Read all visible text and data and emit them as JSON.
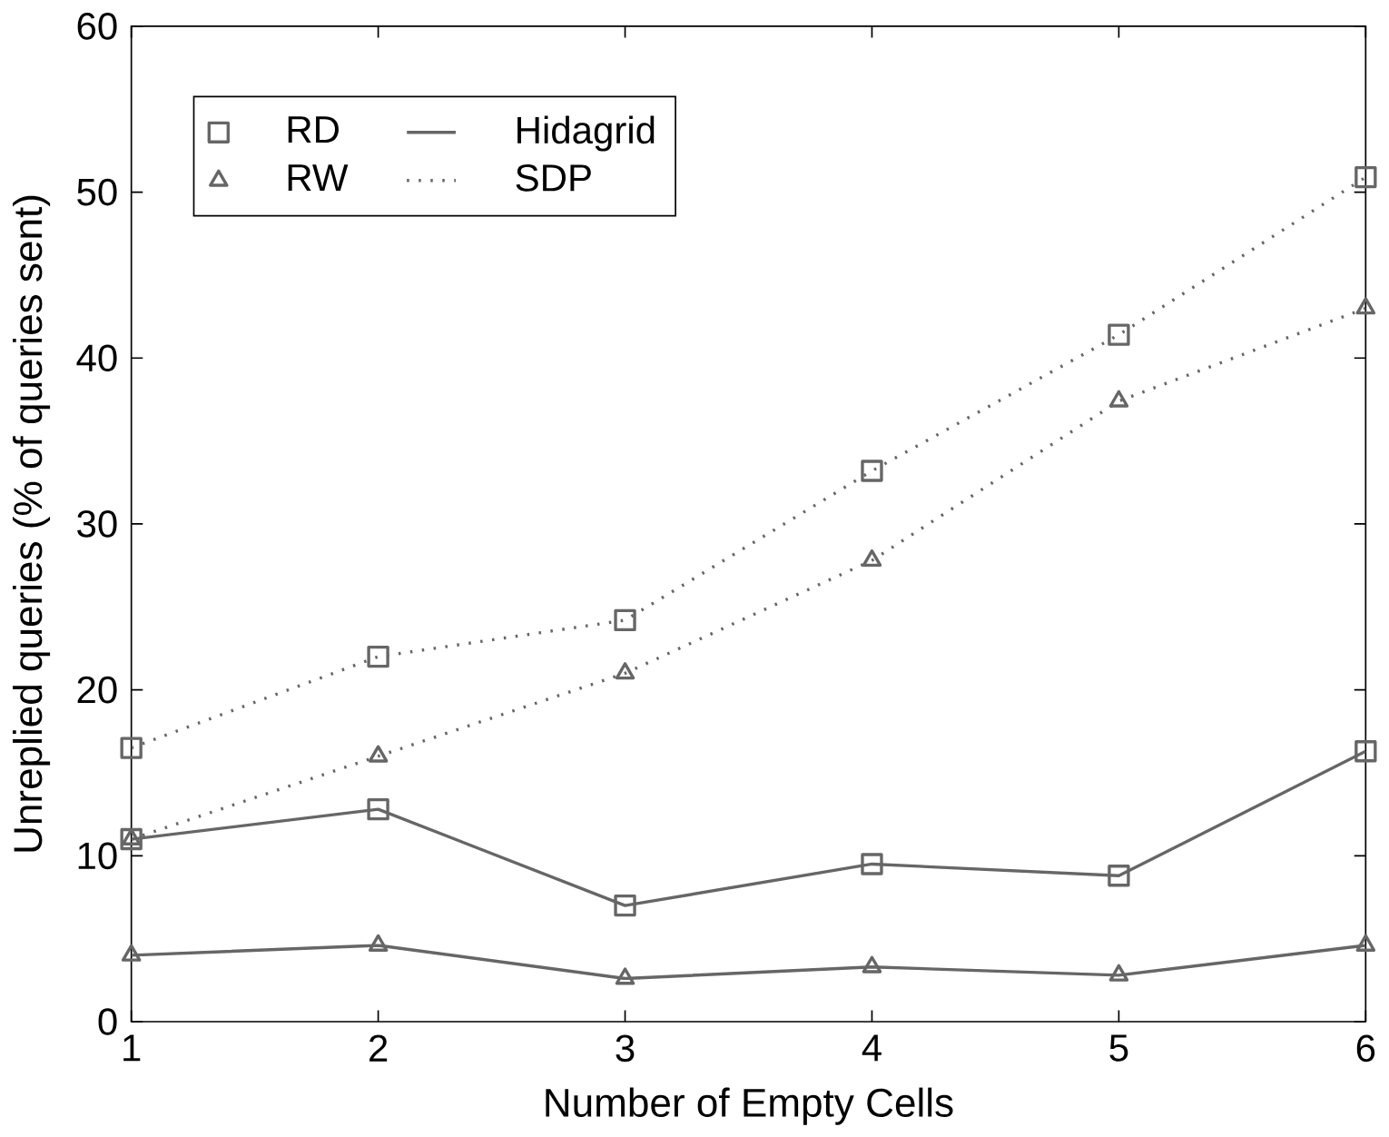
{
  "chart_data": {
    "type": "line",
    "xlabel": "Number of Empty Cells",
    "ylabel": "Unreplied queries (% of queries sent)",
    "x": [
      1,
      2,
      3,
      4,
      5,
      6
    ],
    "xlim": [
      1,
      6
    ],
    "xticks": [
      1,
      2,
      3,
      4,
      5,
      6
    ],
    "ylim": [
      0,
      60
    ],
    "yticks": [
      0,
      10,
      20,
      30,
      40,
      50,
      60
    ],
    "grid": false,
    "legend": "top left",
    "series": [
      {
        "color": "#666666",
        "marker": "square",
        "line_style": "dotted",
        "values": [
          16.5,
          22,
          24.2,
          33.2,
          41.4,
          50.9
        ]
      },
      {
        "color": "#666666",
        "marker": "triangle",
        "line_style": "dotted",
        "values": [
          11,
          16,
          21,
          27.8,
          37.4,
          43
        ]
      },
      {
        "color": "#666666",
        "marker": "square",
        "line_style": "solid",
        "values": [
          11,
          12.8,
          7,
          9.5,
          8.8,
          16.3
        ]
      },
      {
        "color": "#666666",
        "marker": "triangle",
        "line_style": "solid",
        "values": [
          4,
          4.6,
          2.6,
          3.3,
          2.8,
          4.6
        ]
      },
      {
        "name": "RD",
        "color": "#666666",
        "marker": "square",
        "line_style": "none",
        "values": [
          null,
          null,
          null,
          null,
          null,
          null
        ]
      },
      {
        "name": "Hidagrid",
        "color": "#666666",
        "marker": "none",
        "line_style": "solid",
        "values": [
          null,
          null,
          null,
          null,
          null,
          null
        ]
      },
      {
        "name": "RW",
        "color": "#666666",
        "marker": "triangle",
        "line_style": "none",
        "values": [
          null,
          null,
          null,
          null,
          null,
          null
        ]
      },
      {
        "name": "SDP",
        "color": "#666666",
        "marker": "none",
        "line_style": "dotted",
        "values": [
          null,
          null,
          null,
          null,
          null,
          null
        ]
      }
    ]
  }
}
